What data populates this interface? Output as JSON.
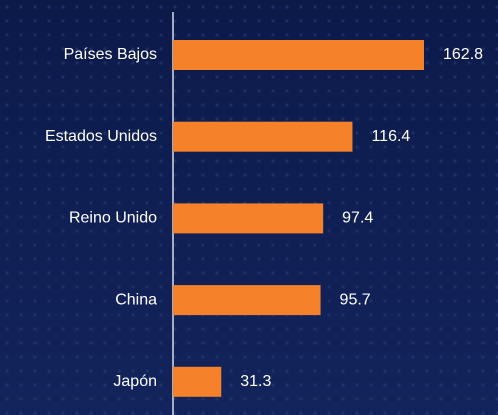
{
  "chart_data": {
    "type": "bar",
    "orientation": "horizontal",
    "categories": [
      "Países Bajos",
      "Estados Unidos",
      "Reino Unido",
      "China",
      "Japón"
    ],
    "values": [
      162.8,
      116.4,
      97.4,
      95.7,
      31.3
    ],
    "color": "#f5822a"
  }
}
